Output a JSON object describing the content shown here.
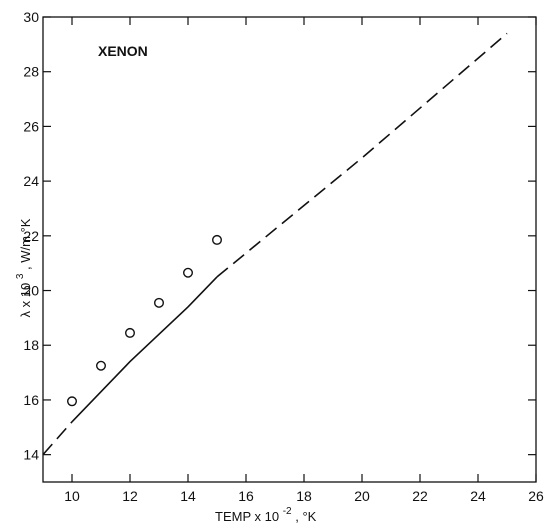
{
  "chart_data": {
    "type": "line",
    "title": "",
    "annotation": "XENON",
    "xlabel": {
      "main": "TEMP x 10",
      "exponent": "-2",
      "unit": ", °K"
    },
    "ylabel": {
      "main": "λ x 10",
      "exponent": "3",
      "unit": ",  W/m °K"
    },
    "xlim": [
      9,
      26
    ],
    "ylim": [
      13,
      30
    ],
    "xticks": [
      10,
      12,
      14,
      16,
      18,
      20,
      22,
      24,
      26
    ],
    "yticks": [
      14,
      16,
      18,
      20,
      22,
      24,
      26,
      28,
      30
    ],
    "grid": false,
    "series": [
      {
        "style": "solid",
        "points": [
          [
            10,
            15.2
          ],
          [
            12,
            17.4
          ],
          [
            14,
            19.4
          ],
          [
            15,
            20.5
          ]
        ]
      },
      {
        "style": "dashed",
        "points": [
          [
            9,
            14.0
          ],
          [
            10,
            15.2
          ]
        ]
      },
      {
        "style": "dashed",
        "points": [
          [
            15,
            20.5
          ],
          [
            20,
            24.85
          ],
          [
            25,
            29.4
          ]
        ]
      },
      {
        "style": "markers",
        "marker": "open-circle",
        "points": [
          [
            10,
            15.95
          ],
          [
            11,
            17.25
          ],
          [
            12,
            18.45
          ],
          [
            13,
            19.55
          ],
          [
            14,
            20.65
          ],
          [
            15,
            21.85
          ]
        ]
      }
    ]
  }
}
